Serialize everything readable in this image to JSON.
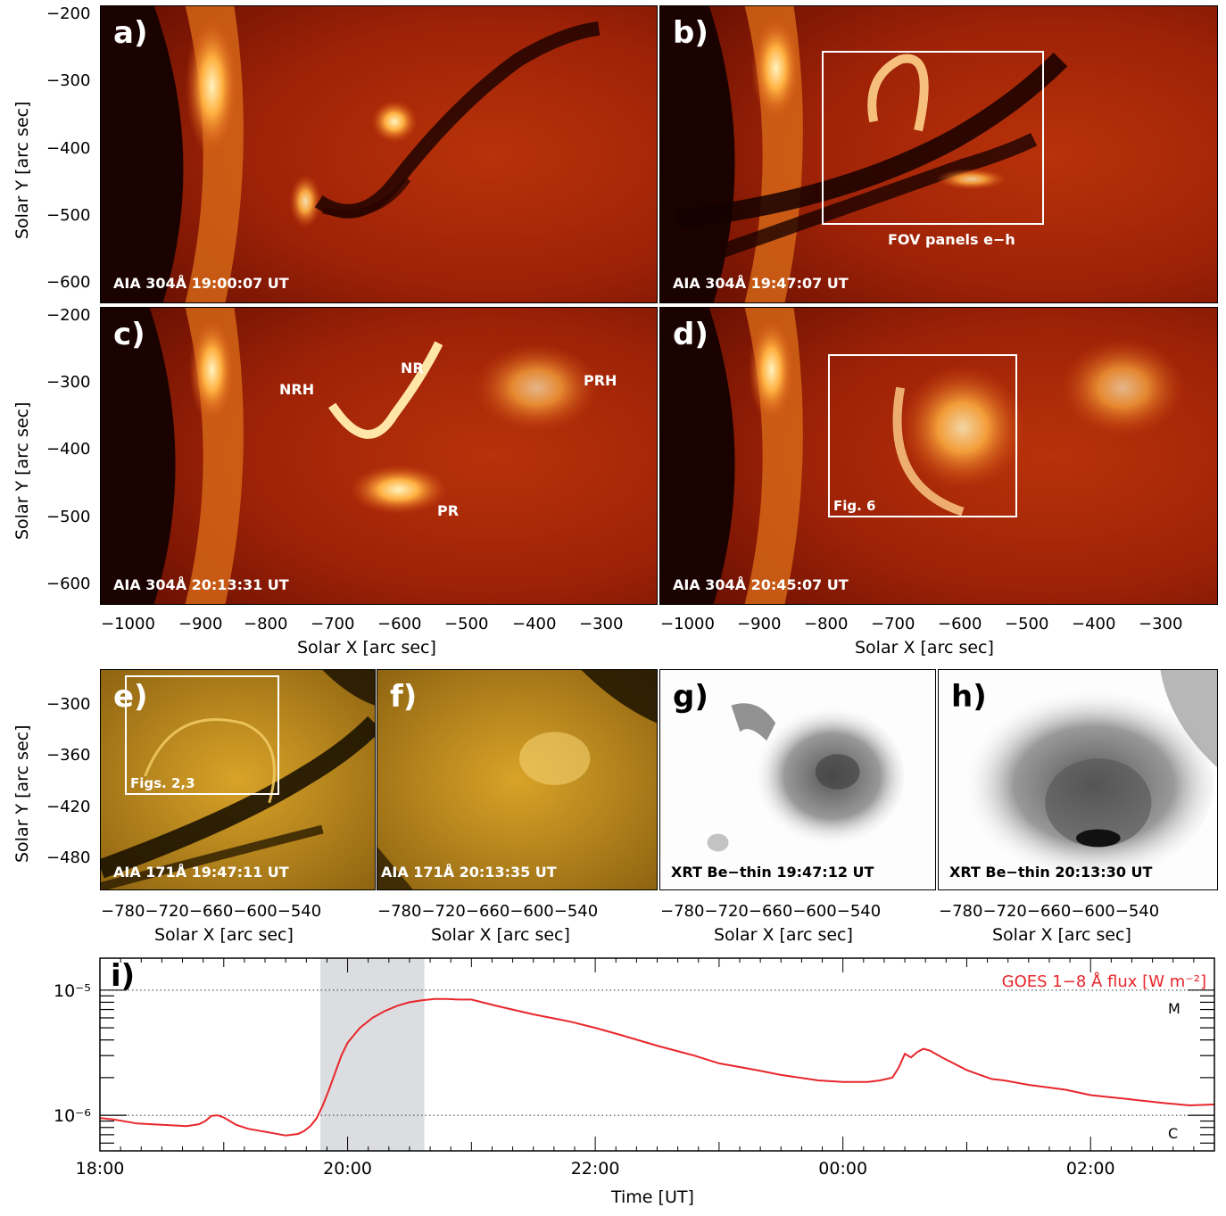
{
  "top_axes": {
    "y_label": "Solar Y [arc sec]",
    "x_label": "Solar X [arc sec]",
    "y_ticks": [
      "−200",
      "−300",
      "−400",
      "−500",
      "−600"
    ],
    "x_ticks": [
      "−1000",
      "−900",
      "−800",
      "−700",
      "−600",
      "−500",
      "−400",
      "−300"
    ]
  },
  "panels": {
    "a": {
      "tag": "a)",
      "caption": "AIA 304Å 19:00:07 UT"
    },
    "b": {
      "tag": "b)",
      "caption": "AIA 304Å 19:47:07 UT",
      "box_label": "FOV panels e−h"
    },
    "c": {
      "tag": "c)",
      "caption": "AIA 304Å 20:13:31 UT",
      "labels": {
        "nrh": "NRH",
        "nr": "NR",
        "prh": "PRH",
        "pr": "PR"
      }
    },
    "d": {
      "tag": "d)",
      "caption": "AIA 304Å 20:45:07 UT",
      "box_label": "Fig. 6"
    },
    "e": {
      "tag": "e)",
      "caption": "AIA 171Å 19:47:11 UT",
      "box_label": "Figs. 2,3"
    },
    "f": {
      "tag": "f)",
      "caption": "AIA 171Å 20:13:35 UT"
    },
    "g": {
      "tag": "g)",
      "caption": "XRT Be−thin 19:47:12 UT"
    },
    "h": {
      "tag": "h)",
      "caption": "XRT Be−thin 20:13:30 UT"
    },
    "i": {
      "tag": "i)"
    }
  },
  "mid_axes": {
    "y_label": "Solar Y [arc sec]",
    "x_label": "Solar X [arc sec]",
    "y_ticks": [
      "−300",
      "−360",
      "−420",
      "−480"
    ],
    "x_ticks": "−780−720−660−600−540"
  },
  "chart_data": {
    "type": "line",
    "series": [
      {
        "name": "GOES 1−8 Å flux [W m⁻²]",
        "color": "#e8262b"
      }
    ],
    "legend": "GOES 1−8 Å flux [W m⁻²]",
    "xlabel": "Time [UT]",
    "x_ticks": [
      "18:00",
      "20:00",
      "22:00",
      "00:00",
      "02:00"
    ],
    "xlim_hours": [
      18.0,
      27.0
    ],
    "y_scale": "log",
    "ylim": [
      5.2e-07,
      1.8e-05
    ],
    "y_ticks": [
      "10⁻⁵",
      "10⁻⁶"
    ],
    "class_levels": [
      {
        "label": "M",
        "value": 1e-05
      },
      {
        "label": "C",
        "value": 1e-06
      }
    ],
    "shaded_interval_hours": [
      19.78,
      20.62
    ],
    "x": [
      18.0,
      18.1,
      18.3,
      18.5,
      18.7,
      18.8,
      18.85,
      18.9,
      18.95,
      19.0,
      19.05,
      19.1,
      19.2,
      19.4,
      19.5,
      19.6,
      19.65,
      19.7,
      19.75,
      19.8,
      19.85,
      19.9,
      19.95,
      20.0,
      20.1,
      20.2,
      20.3,
      20.4,
      20.5,
      20.6,
      20.7,
      20.8,
      20.9,
      21.0,
      21.2,
      21.5,
      21.8,
      22.0,
      22.2,
      22.5,
      22.8,
      23.0,
      23.3,
      23.5,
      23.8,
      24.0,
      24.2,
      24.3,
      24.4,
      24.45,
      24.5,
      24.55,
      24.6,
      24.65,
      24.7,
      24.8,
      25.0,
      25.2,
      25.3,
      25.5,
      25.8,
      26.0,
      26.3,
      26.6,
      26.8,
      27.0
    ],
    "y": [
      9.5e-07,
      9.3e-07,
      8.6e-07,
      8.4e-07,
      8.2e-07,
      8.5e-07,
      9e-07,
      9.9e-07,
      1e-06,
      9.6e-07,
      9e-07,
      8.4e-07,
      7.8e-07,
      7.2e-07,
      6.9e-07,
      7.1e-07,
      7.5e-07,
      8.2e-07,
      9.5e-07,
      1.2e-06,
      1.6e-06,
      2.2e-06,
      3e-06,
      3.8e-06,
      5e-06,
      6e-06,
      6.8e-06,
      7.5e-06,
      8e-06,
      8.3e-06,
      8.5e-06,
      8.5e-06,
      8.4e-06,
      8.4e-06,
      7.5e-06,
      6.4e-06,
      5.6e-06,
      5e-06,
      4.4e-06,
      3.6e-06,
      3e-06,
      2.6e-06,
      2.3e-06,
      2.1e-06,
      1.9e-06,
      1.85e-06,
      1.85e-06,
      1.9e-06,
      2e-06,
      2.4e-06,
      3.1e-06,
      2.9e-06,
      3.2e-06,
      3.4e-06,
      3.3e-06,
      2.9e-06,
      2.3e-06,
      1.95e-06,
      1.9e-06,
      1.75e-06,
      1.6e-06,
      1.45e-06,
      1.35e-06,
      1.25e-06,
      1.2e-06,
      1.22e-06
    ]
  }
}
